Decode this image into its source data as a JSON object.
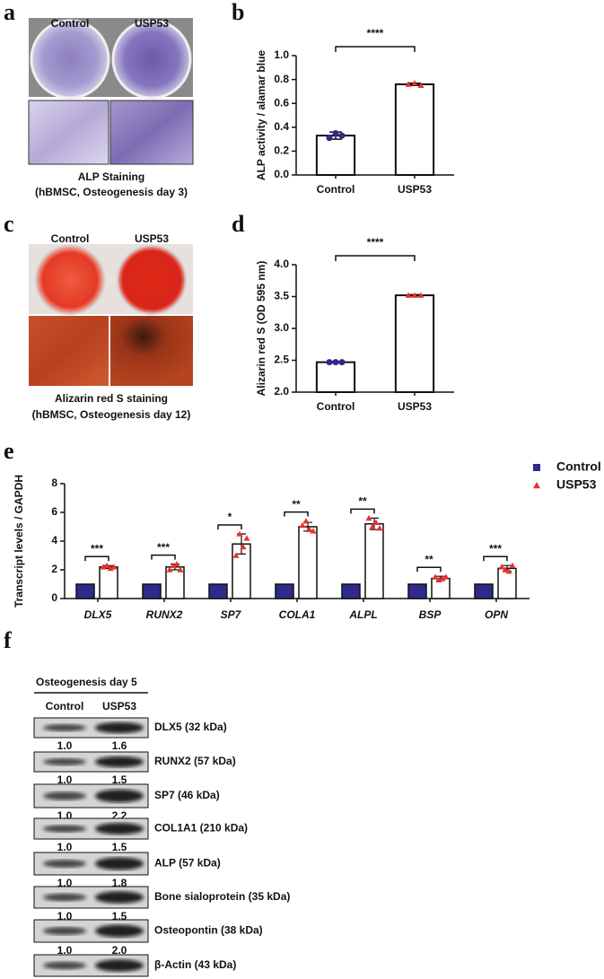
{
  "panels": {
    "a": {
      "letter": "a",
      "columns": [
        "Control",
        "USP53"
      ],
      "caption": [
        "ALP Staining",
        "(hBMSC, Osteogenesis day 3)"
      ]
    },
    "c": {
      "letter": "c",
      "columns": [
        "Control",
        "USP53"
      ],
      "caption": [
        "Alizarin red S staining",
        "(hBMSC, Osteogenesis day 12)"
      ]
    },
    "f": {
      "letter": "f",
      "title": "Osteogenesis day 5",
      "columns": [
        "Control",
        "USP53"
      ],
      "rows": [
        {
          "label": "DLX5 (32 kDa)",
          "ratios": [
            "1.0",
            "1.6"
          ]
        },
        {
          "label": "RUNX2 (57 kDa)",
          "ratios": [
            "1.0",
            "1.5"
          ]
        },
        {
          "label": "SP7 (46 kDa)",
          "ratios": [
            "1.0",
            "2.2"
          ]
        },
        {
          "label": "COL1A1 (210 kDa)",
          "ratios": [
            "1.0",
            "1.5"
          ]
        },
        {
          "label": "ALP (57 kDa)",
          "ratios": [
            "1.0",
            "1.8"
          ]
        },
        {
          "label": "Bone sialoprotein (35 kDa)",
          "ratios": [
            "1.0",
            "1.5"
          ]
        },
        {
          "label": "Osteopontin (38 kDa)",
          "ratios": [
            "1.0",
            "2.0"
          ]
        },
        {
          "label": "β-Actin (43 kDa)"
        }
      ]
    }
  },
  "chart_data": [
    {
      "type": "bar",
      "panel_label": "b",
      "y_label": "ALP activity / alamar blue",
      "categories": [
        "Control",
        "USP53"
      ],
      "values": [
        0.33,
        0.76
      ],
      "errors": [
        0.03,
        0.01
      ],
      "points": [
        [
          0.31,
          0.35,
          0.33
        ],
        [
          0.76,
          0.77,
          0.75
        ]
      ],
      "point_colors": [
        "#2e2a8c",
        "#e8322e"
      ],
      "significance": "****",
      "ylim": [
        0,
        1
      ],
      "yticks": [
        {
          "value": 0,
          "label": "0.0"
        },
        0.2,
        0.4,
        0.6,
        0.8,
        {
          "value": 1,
          "label": "1.0"
        }
      ]
    },
    {
      "type": "bar",
      "panel_label": "d",
      "y_label": "Alizarin red S (OD 595 nm)",
      "categories": [
        "Control",
        "USP53"
      ],
      "values": [
        2.47,
        3.52
      ],
      "errors": [
        0.01,
        0.01
      ],
      "points": [
        [
          2.47,
          2.47,
          2.47
        ],
        [
          3.52,
          3.52,
          3.52
        ]
      ],
      "point_colors": [
        "#2e2a8c",
        "#e8322e"
      ],
      "significance": "****",
      "ylim": [
        2,
        4
      ],
      "yticks": [
        {
          "value": 2,
          "label": "2.0"
        },
        2.5,
        {
          "value": 3,
          "label": "3.0"
        },
        3.5,
        {
          "value": 4,
          "label": "4.0"
        }
      ]
    },
    {
      "type": "bar",
      "panel_label": "e",
      "y_label": "Transcript levels / GAPDH",
      "categories": [
        "DLX5",
        "RUNX2",
        "SP7",
        "COLA1",
        "ALPL",
        "BSP",
        "OPN"
      ],
      "series": [
        {
          "name": "Control",
          "color": "#2e2a8c",
          "values": [
            1,
            1,
            1,
            1,
            1,
            1,
            1
          ]
        },
        {
          "name": "USP53",
          "color": "#e8322e",
          "values": [
            2.2,
            2.2,
            3.8,
            5.0,
            5.2,
            1.4,
            2.1
          ],
          "errors": [
            0.1,
            0.2,
            0.7,
            0.3,
            0.4,
            0.15,
            0.2
          ],
          "points": [
            [
              2.2,
              2.3,
              2.1,
              2.2
            ],
            [
              2.0,
              2.3,
              2.4,
              2.0
            ],
            [
              3.0,
              4.5,
              3.6,
              4.2
            ],
            [
              5.1,
              5.4,
              4.8,
              4.7
            ],
            [
              5.6,
              5.0,
              5.3,
              4.9
            ],
            [
              1.5,
              1.3,
              1.4,
              1.5
            ],
            [
              2.2,
              2.0,
              1.9,
              2.3
            ]
          ]
        }
      ],
      "significance": [
        "***",
        "***",
        "*",
        "**",
        "**",
        "**",
        "***"
      ],
      "legend": "top-right",
      "ylim": [
        0,
        8
      ],
      "yticks": [
        0,
        2,
        4,
        6,
        8
      ]
    }
  ]
}
